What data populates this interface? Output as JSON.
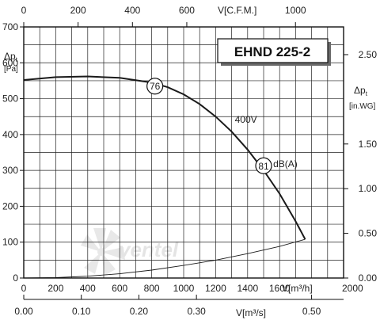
{
  "chart_data": {
    "type": "line",
    "title": "EHND 225-2",
    "x_primary": {
      "label": "V[m³/h]",
      "range": [
        0,
        2000
      ],
      "ticks": [
        "0",
        "200",
        "400",
        "600",
        "800",
        "1000",
        "1200",
        "1400",
        "1600",
        "2000"
      ]
    },
    "x_top": {
      "label": "V[C.F.M.]",
      "range": [
        0,
        1177
      ],
      "ticks": [
        "0",
        "200",
        "400",
        "600",
        "1000"
      ],
      "tick_values": [
        0,
        200,
        400,
        600,
        1000
      ]
    },
    "x_bottom": {
      "label": "V[m³/s]",
      "range": [
        0,
        0.5556
      ],
      "ticks": [
        "0.00",
        "0.10",
        "0.20",
        "0.30",
        "0.50"
      ],
      "tick_values": [
        0,
        0.1,
        0.2,
        0.3,
        0.5
      ]
    },
    "y_left": {
      "label_main": "Δp",
      "label_sub": "t",
      "unit": "[Pa]",
      "range": [
        0,
        700
      ],
      "ticks": [
        "0",
        "100",
        "200",
        "300",
        "400",
        "500",
        "600",
        "700"
      ]
    },
    "y_right": {
      "label_main": "Δp",
      "label_sub": "t",
      "unit": "[in.WG]",
      "range": [
        0,
        2.81
      ],
      "ticks": [
        "0.00",
        "0.50",
        "1.00",
        "1.50",
        "2.50"
      ],
      "tick_values": [
        0,
        0.5,
        1.0,
        1.5,
        2.5
      ]
    },
    "series": [
      {
        "name": "400V",
        "color": "#1a1a1a",
        "points": [
          [
            0,
            552
          ],
          [
            200,
            560
          ],
          [
            400,
            562
          ],
          [
            600,
            558
          ],
          [
            800,
            545
          ],
          [
            900,
            532
          ],
          [
            1000,
            512
          ],
          [
            1100,
            485
          ],
          [
            1200,
            450
          ],
          [
            1300,
            408
          ],
          [
            1400,
            358
          ],
          [
            1500,
            300
          ],
          [
            1600,
            235
          ],
          [
            1700,
            158
          ],
          [
            1760,
            108
          ]
        ]
      },
      {
        "name": "",
        "color": "#1a1a1a",
        "points": [
          [
            0,
            0
          ],
          [
            200,
            1
          ],
          [
            400,
            5
          ],
          [
            600,
            12
          ],
          [
            800,
            22
          ],
          [
            1000,
            35
          ],
          [
            1200,
            50
          ],
          [
            1400,
            68
          ],
          [
            1600,
            88
          ],
          [
            1760,
            108
          ]
        ]
      }
    ],
    "annotations": [
      {
        "text": "76",
        "x": 820,
        "y": 535,
        "circled": true
      },
      {
        "text": "81",
        "x": 1500,
        "y": 313,
        "circled": true
      },
      {
        "text": "dB(A)",
        "x": 1560,
        "y": 318,
        "circled": false
      },
      {
        "text": "400V",
        "x": 1320,
        "y": 442,
        "circled": false
      }
    ],
    "watermark": "ventel",
    "grid": true
  }
}
